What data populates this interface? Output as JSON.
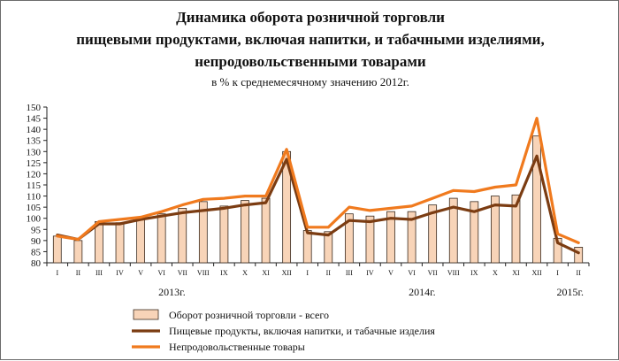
{
  "chart_data": {
    "type": "bar",
    "title_lines": [
      "Динамика оборота розничной торговли",
      "пищевыми продуктами, включая напитки, и табачными изделиями,",
      "непродовольственными товарами"
    ],
    "subtitle": "в % к среднемесячному значению 2012г.",
    "categories": [
      "I",
      "II",
      "III",
      "IV",
      "V",
      "VI",
      "VII",
      "VIII",
      "IX",
      "X",
      "XI",
      "XII",
      "I",
      "II",
      "III",
      "IV",
      "V",
      "VI",
      "VII",
      "VIII",
      "IX",
      "X",
      "XI",
      "XII",
      "I",
      "II"
    ],
    "year_labels": [
      {
        "label": "2013г.",
        "at_index": 5.5
      },
      {
        "label": "2014г.",
        "at_index": 17.5
      },
      {
        "label": "2015г.",
        "at_index": 24.6
      }
    ],
    "ylim": [
      80,
      150
    ],
    "yticks": [
      80,
      85,
      90,
      95,
      100,
      105,
      110,
      115,
      120,
      125,
      130,
      135,
      140,
      145,
      150
    ],
    "grid": false,
    "legend_position": "bottom",
    "series": [
      {
        "name": "Оборот розничной торговли - всего",
        "kind": "bar",
        "color": "#f8d4b8",
        "values": [
          92,
          90,
          98.5,
          98,
          100,
          102,
          104.5,
          107.5,
          105.5,
          108,
          109,
          130,
          94.5,
          94,
          102,
          101,
          103,
          103,
          106,
          109,
          107.5,
          110,
          110.5,
          137,
          91,
          87
        ]
      },
      {
        "name": "Пищевые продукты, включая напитки, и табачные изделия",
        "kind": "line",
        "color": "#7b3c12",
        "values": [
          92.5,
          90.5,
          97.5,
          97.5,
          99.5,
          101,
          102.5,
          103.5,
          104.5,
          106,
          107,
          126.5,
          93.5,
          92.5,
          99,
          98.5,
          100,
          99.5,
          102.5,
          105,
          103,
          106,
          105.5,
          128,
          89,
          84.5
        ]
      },
      {
        "name": "Непродовольственные товары",
        "kind": "line",
        "color": "#f07a1e",
        "values": [
          92,
          90.5,
          98.5,
          99.5,
          100.5,
          103,
          106,
          108.5,
          109,
          110,
          110,
          131,
          96,
          96,
          105,
          103.5,
          104.5,
          105.5,
          109,
          112.5,
          112,
          114,
          115,
          145,
          93,
          89
        ]
      }
    ]
  }
}
